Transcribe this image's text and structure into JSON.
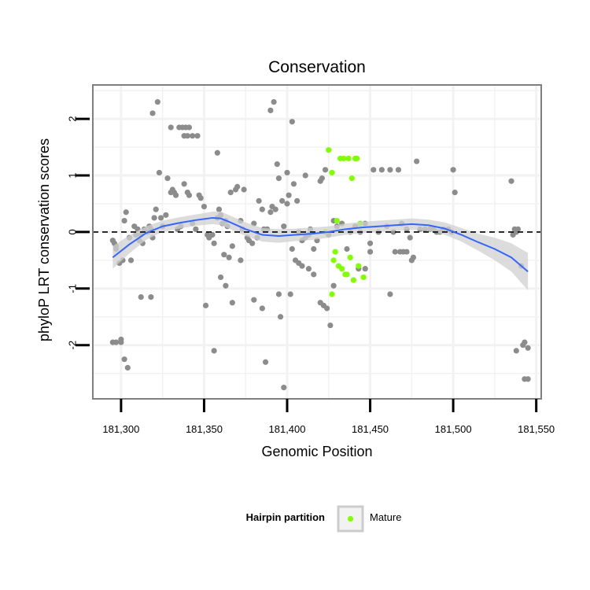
{
  "chart_data": {
    "type": "scatter",
    "title": "Conservation",
    "xlabel": "Genomic Position",
    "ylabel": "phyloP LRT conservation scores",
    "xlim": [
      181283,
      181553
    ],
    "ylim": [
      -2.95,
      2.6
    ],
    "x_ticks": [
      181300,
      181350,
      181400,
      181450,
      181500,
      181550
    ],
    "x_tick_labels": [
      "181,300",
      "181,350",
      "181,400",
      "181,450",
      "181,500",
      "181,550"
    ],
    "y_ticks": [
      -2,
      -1,
      0,
      1,
      2
    ],
    "y_tick_labels": [
      "-2",
      "-1",
      "0",
      "1",
      "2"
    ],
    "grid": true,
    "reference_line": {
      "y": 0,
      "style": "dashed",
      "color": "#000000"
    },
    "legend": {
      "title": "Hairpin partition",
      "position": "bottom",
      "entries": [
        {
          "label": "Mature",
          "color": "#7fff00"
        }
      ]
    },
    "colors": {
      "other": "#8c8c8c",
      "mature": "#7fff00",
      "smooth": "#3366ff",
      "band": "#d0d0d0",
      "panel_border": "#7f7f7f",
      "grid": "#f2f2f2"
    },
    "series": [
      {
        "name": "",
        "color": "#8c8c8c",
        "points": [
          [
            181295,
            -0.15
          ],
          [
            181296,
            -0.2
          ],
          [
            181297,
            -0.25
          ],
          [
            181297,
            -0.3
          ],
          [
            181299,
            -0.55
          ],
          [
            181301,
            -0.5
          ],
          [
            181302,
            0.2
          ],
          [
            181303,
            0.35
          ],
          [
            181305,
            -0.1
          ],
          [
            181306,
            -0.5
          ],
          [
            181308,
            0.1
          ],
          [
            181309,
            -0.05
          ],
          [
            181310,
            0.05
          ],
          [
            181311,
            -0.15
          ],
          [
            181312,
            -0.05
          ],
          [
            181313,
            -0.2
          ],
          [
            181314,
            0.05
          ],
          [
            181316,
            0.0
          ],
          [
            181317,
            0.1
          ],
          [
            181318,
            0.05
          ],
          [
            181319,
            -0.1
          ],
          [
            181320,
            0.25
          ],
          [
            181321,
            0.4
          ],
          [
            181323,
            1.05
          ],
          [
            181324,
            0.25
          ],
          [
            181325,
            0.1
          ],
          [
            181327,
            0.3
          ],
          [
            181328,
            0.95
          ],
          [
            181330,
            0.7
          ],
          [
            181331,
            0.75
          ],
          [
            181332,
            0.7
          ],
          [
            181333,
            0.65
          ],
          [
            181334,
            0.05
          ],
          [
            181336,
            0.1
          ],
          [
            181338,
            0.85
          ],
          [
            181340,
            0.7
          ],
          [
            181341,
            0.65
          ],
          [
            181343,
            0.15
          ],
          [
            181345,
            0.05
          ],
          [
            181347,
            0.65
          ],
          [
            181348,
            0.6
          ],
          [
            181350,
            0.45
          ],
          [
            181352,
            -0.05
          ],
          [
            181353,
            -0.1
          ],
          [
            181355,
            -0.05
          ],
          [
            181356,
            -0.2
          ],
          [
            181358,
            0.25
          ],
          [
            181359,
            0.4
          ],
          [
            181360,
            0.3
          ],
          [
            181361,
            0.15
          ],
          [
            181363,
            0.2
          ],
          [
            181364,
            0.1
          ],
          [
            181366,
            0.7
          ],
          [
            181367,
            -0.25
          ],
          [
            181369,
            0.75
          ],
          [
            181370,
            0.8
          ],
          [
            181372,
            0.2
          ],
          [
            181373,
            0.05
          ],
          [
            181374,
            0.75
          ],
          [
            181376,
            -0.1
          ],
          [
            181377,
            -0.15
          ],
          [
            181379,
            -0.2
          ],
          [
            181380,
            0.15
          ],
          [
            181382,
            -0.1
          ],
          [
            181383,
            0.55
          ],
          [
            181385,
            0.4
          ],
          [
            181386,
            0.05
          ],
          [
            181388,
            0.05
          ],
          [
            181390,
            0.35
          ],
          [
            181391,
            0.45
          ],
          [
            181393,
            0.4
          ],
          [
            181395,
            0.95
          ],
          [
            181397,
            0.55
          ],
          [
            181398,
            0.1
          ],
          [
            181400,
            0.5
          ],
          [
            181401,
            0.65
          ],
          [
            181403,
            -0.3
          ],
          [
            181404,
            0.85
          ],
          [
            181406,
            0.55
          ],
          [
            181407,
            0.0
          ],
          [
            181409,
            -0.15
          ],
          [
            181411,
            -0.1
          ],
          [
            181413,
            -0.05
          ],
          [
            181414,
            0.05
          ],
          [
            181416,
            -0.3
          ],
          [
            181418,
            -0.15
          ],
          [
            181420,
            0.9
          ],
          [
            181421,
            0.95
          ],
          [
            181423,
            1.1
          ],
          [
            181425,
            -0.05
          ],
          [
            181428,
            0.2
          ],
          [
            181430,
            0.1
          ],
          [
            181433,
            0.15
          ],
          [
            181436,
            -0.3
          ],
          [
            181438,
            0.0
          ],
          [
            181441,
            0.1
          ],
          [
            181444,
            0.0
          ],
          [
            181447,
            0.15
          ],
          [
            181450,
            -0.2
          ],
          [
            181452,
            1.1
          ],
          [
            181455,
            0.0
          ],
          [
            181457,
            1.1
          ],
          [
            181460,
            0.1
          ],
          [
            181462,
            1.1
          ],
          [
            181464,
            0.0
          ],
          [
            181467,
            1.1
          ],
          [
            181469,
            0.15
          ],
          [
            181472,
            0.05
          ],
          [
            181474,
            -0.1
          ],
          [
            181476,
            -0.45
          ],
          [
            181478,
            1.25
          ],
          [
            181480,
            0.05
          ],
          [
            181483,
            0.05
          ],
          [
            181486,
            0.05
          ],
          [
            181488,
            0.05
          ],
          [
            181490,
            0.0
          ],
          [
            181492,
            0.0
          ],
          [
            181494,
            0.05
          ],
          [
            181497,
            0.05
          ],
          [
            181499,
            0.0
          ],
          [
            181536,
            -0.05
          ],
          [
            181537,
            0.05
          ],
          [
            181538,
            0.0
          ],
          [
            181539,
            0.05
          ],
          [
            181541,
            -0.6
          ],
          [
            181295,
            -1.95
          ],
          [
            181297,
            -1.95
          ],
          [
            181300,
            -1.95
          ],
          [
            181300,
            -1.9
          ],
          [
            181302,
            -2.25
          ],
          [
            181304,
            -2.4
          ],
          [
            181312,
            -1.15
          ],
          [
            181318,
            -1.15
          ],
          [
            181319,
            2.1
          ],
          [
            181322,
            2.3
          ],
          [
            181330,
            1.85
          ],
          [
            181335,
            1.85
          ],
          [
            181337,
            1.85
          ],
          [
            181339,
            1.85
          ],
          [
            181341,
            1.85
          ],
          [
            181338,
            1.7
          ],
          [
            181340,
            1.7
          ],
          [
            181343,
            1.7
          ],
          [
            181346,
            1.7
          ],
          [
            181351,
            -1.3
          ],
          [
            181356,
            -2.1
          ],
          [
            181358,
            1.4
          ],
          [
            181360,
            -0.8
          ],
          [
            181362,
            -0.4
          ],
          [
            181363,
            -0.95
          ],
          [
            181365,
            -0.45
          ],
          [
            181367,
            -1.25
          ],
          [
            181372,
            -0.5
          ],
          [
            181380,
            -1.2
          ],
          [
            181385,
            -1.35
          ],
          [
            181387,
            -2.3
          ],
          [
            181390,
            2.15
          ],
          [
            181392,
            2.3
          ],
          [
            181394,
            1.2
          ],
          [
            181395,
            -1.1
          ],
          [
            181396,
            -1.5
          ],
          [
            181398,
            -2.75
          ],
          [
            181400,
            1.05
          ],
          [
            181402,
            -1.1
          ],
          [
            181403,
            1.95
          ],
          [
            181405,
            -0.5
          ],
          [
            181407,
            -0.55
          ],
          [
            181409,
            -0.6
          ],
          [
            181411,
            1.0
          ],
          [
            181413,
            -0.65
          ],
          [
            181416,
            -0.75
          ],
          [
            181420,
            -1.25
          ],
          [
            181422,
            -1.3
          ],
          [
            181424,
            -1.35
          ],
          [
            181426,
            -1.65
          ],
          [
            181428,
            -0.95
          ],
          [
            181443,
            -0.65
          ],
          [
            181447,
            -0.65
          ],
          [
            181450,
            -0.35
          ],
          [
            181462,
            -1.1
          ],
          [
            181465,
            -0.35
          ],
          [
            181468,
            -0.35
          ],
          [
            181470,
            -0.35
          ],
          [
            181472,
            -0.35
          ],
          [
            181475,
            -0.5
          ],
          [
            181500,
            1.1
          ],
          [
            181501,
            0.7
          ],
          [
            181535,
            0.9
          ],
          [
            181538,
            -2.1
          ],
          [
            181542,
            -2.0
          ],
          [
            181543,
            -1.95
          ],
          [
            181543,
            -2.6
          ],
          [
            181545,
            -2.6
          ],
          [
            181545,
            -2.05
          ]
        ]
      },
      {
        "name": "Mature",
        "color": "#7fff00",
        "points": [
          [
            181425,
            1.45
          ],
          [
            181427,
            1.05
          ],
          [
            181428,
            -0.5
          ],
          [
            181429,
            -0.35
          ],
          [
            181430,
            0.2
          ],
          [
            181431,
            -0.6
          ],
          [
            181432,
            1.3
          ],
          [
            181433,
            -0.65
          ],
          [
            181434,
            1.3
          ],
          [
            181435,
            -0.75
          ],
          [
            181436,
            -0.75
          ],
          [
            181437,
            1.3
          ],
          [
            181438,
            -0.45
          ],
          [
            181439,
            0.95
          ],
          [
            181440,
            -0.85
          ],
          [
            181441,
            1.3
          ],
          [
            181442,
            1.3
          ],
          [
            181443,
            -0.6
          ],
          [
            181444,
            0.15
          ],
          [
            181446,
            -0.8
          ],
          [
            181427,
            -1.1
          ],
          [
            181423,
            0.0
          ]
        ]
      }
    ],
    "smooth": {
      "x": [
        181295,
        181305,
        181315,
        181325,
        181335,
        181345,
        181355,
        181360,
        181365,
        181375,
        181385,
        181395,
        181405,
        181415,
        181425,
        181435,
        181445,
        181455,
        181465,
        181475,
        181485,
        181495,
        181505,
        181515,
        181525,
        181535,
        181545
      ],
      "y": [
        -0.45,
        -0.22,
        -0.02,
        0.1,
        0.16,
        0.21,
        0.25,
        0.24,
        0.18,
        0.05,
        -0.05,
        -0.07,
        -0.05,
        -0.03,
        0.0,
        0.05,
        0.08,
        0.1,
        0.12,
        0.14,
        0.12,
        0.06,
        -0.05,
        -0.18,
        -0.3,
        -0.45,
        -0.7
      ],
      "band_halfwidth": [
        0.2,
        0.16,
        0.12,
        0.1,
        0.1,
        0.1,
        0.11,
        0.12,
        0.12,
        0.12,
        0.12,
        0.12,
        0.11,
        0.11,
        0.1,
        0.1,
        0.1,
        0.1,
        0.1,
        0.1,
        0.1,
        0.11,
        0.12,
        0.15,
        0.2,
        0.25,
        0.33
      ]
    }
  }
}
